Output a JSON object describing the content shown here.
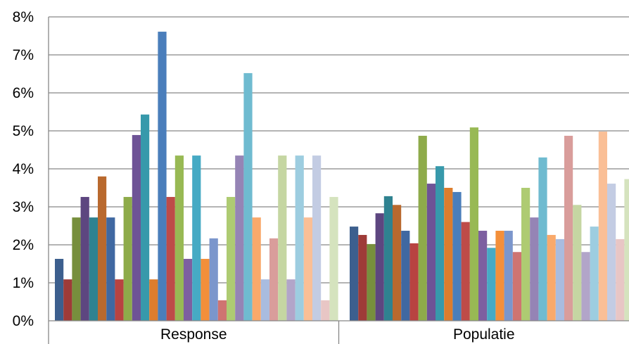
{
  "chart_data": {
    "type": "bar",
    "title": "",
    "xlabel": "",
    "ylabel": "",
    "categories": [
      "Response",
      "Populatie"
    ],
    "ylim": [
      0,
      8
    ],
    "yticks": [
      "0%",
      "1%",
      "2%",
      "3%",
      "4%",
      "5%",
      "6%",
      "7%",
      "8%"
    ],
    "grid": true,
    "legend": "none",
    "series": [
      {
        "values": [
          1.63,
          2.48
        ],
        "color": "#3C5F8E"
      },
      {
        "values": [
          1.09,
          2.26
        ],
        "color": "#9E3B38"
      },
      {
        "values": [
          2.72,
          2.02
        ],
        "color": "#778F3D"
      },
      {
        "values": [
          3.26,
          2.83
        ],
        "color": "#5D4680"
      },
      {
        "values": [
          2.72,
          3.28
        ],
        "color": "#2F8290"
      },
      {
        "values": [
          3.8,
          3.05
        ],
        "color": "#B9692E"
      },
      {
        "values": [
          2.72,
          2.37
        ],
        "color": "#4068A1"
      },
      {
        "values": [
          1.09,
          2.04
        ],
        "color": "#B84341"
      },
      {
        "values": [
          3.26,
          4.87
        ],
        "color": "#8EAB4A"
      },
      {
        "values": [
          4.89,
          3.61
        ],
        "color": "#6E5396"
      },
      {
        "values": [
          5.43,
          4.07
        ],
        "color": "#3799AB"
      },
      {
        "values": [
          1.09,
          3.5
        ],
        "color": "#DD7D2D"
      },
      {
        "values": [
          7.61,
          3.39
        ],
        "color": "#4A7EBB"
      },
      {
        "values": [
          3.26,
          2.6
        ],
        "color": "#BE4B48"
      },
      {
        "values": [
          4.35,
          5.09
        ],
        "color": "#98B954"
      },
      {
        "values": [
          1.63,
          2.37
        ],
        "color": "#7D5FA0"
      },
      {
        "values": [
          4.35,
          1.92
        ],
        "color": "#46AAC4"
      },
      {
        "values": [
          1.63,
          2.37
        ],
        "color": "#F38F3A"
      },
      {
        "values": [
          2.17,
          2.37
        ],
        "color": "#7B96CC"
      },
      {
        "values": [
          0.54,
          1.81
        ],
        "color": "#CF7471"
      },
      {
        "values": [
          3.26,
          3.5
        ],
        "color": "#AECB72"
      },
      {
        "values": [
          4.35,
          2.72
        ],
        "color": "#9584B5"
      },
      {
        "values": [
          6.52,
          4.3
        ],
        "color": "#6FBBD0"
      },
      {
        "values": [
          2.72,
          2.26
        ],
        "color": "#F9A96B"
      },
      {
        "values": [
          1.09,
          2.15
        ],
        "color": "#A9BCDF"
      },
      {
        "values": [
          2.17,
          4.87
        ],
        "color": "#D99D9B"
      },
      {
        "values": [
          4.35,
          3.05
        ],
        "color": "#C5D6A2"
      },
      {
        "values": [
          1.09,
          1.81
        ],
        "color": "#B2A5C9"
      },
      {
        "values": [
          4.35,
          2.48
        ],
        "color": "#9DCDE0"
      },
      {
        "values": [
          2.72,
          4.98
        ],
        "color": "#FABF96"
      },
      {
        "values": [
          4.35,
          3.61
        ],
        "color": "#C3CCE3"
      },
      {
        "values": [
          0.54,
          2.15
        ],
        "color": "#E8C6C5"
      },
      {
        "values": [
          3.26,
          3.73
        ],
        "color": "#D5E3BE"
      }
    ]
  }
}
